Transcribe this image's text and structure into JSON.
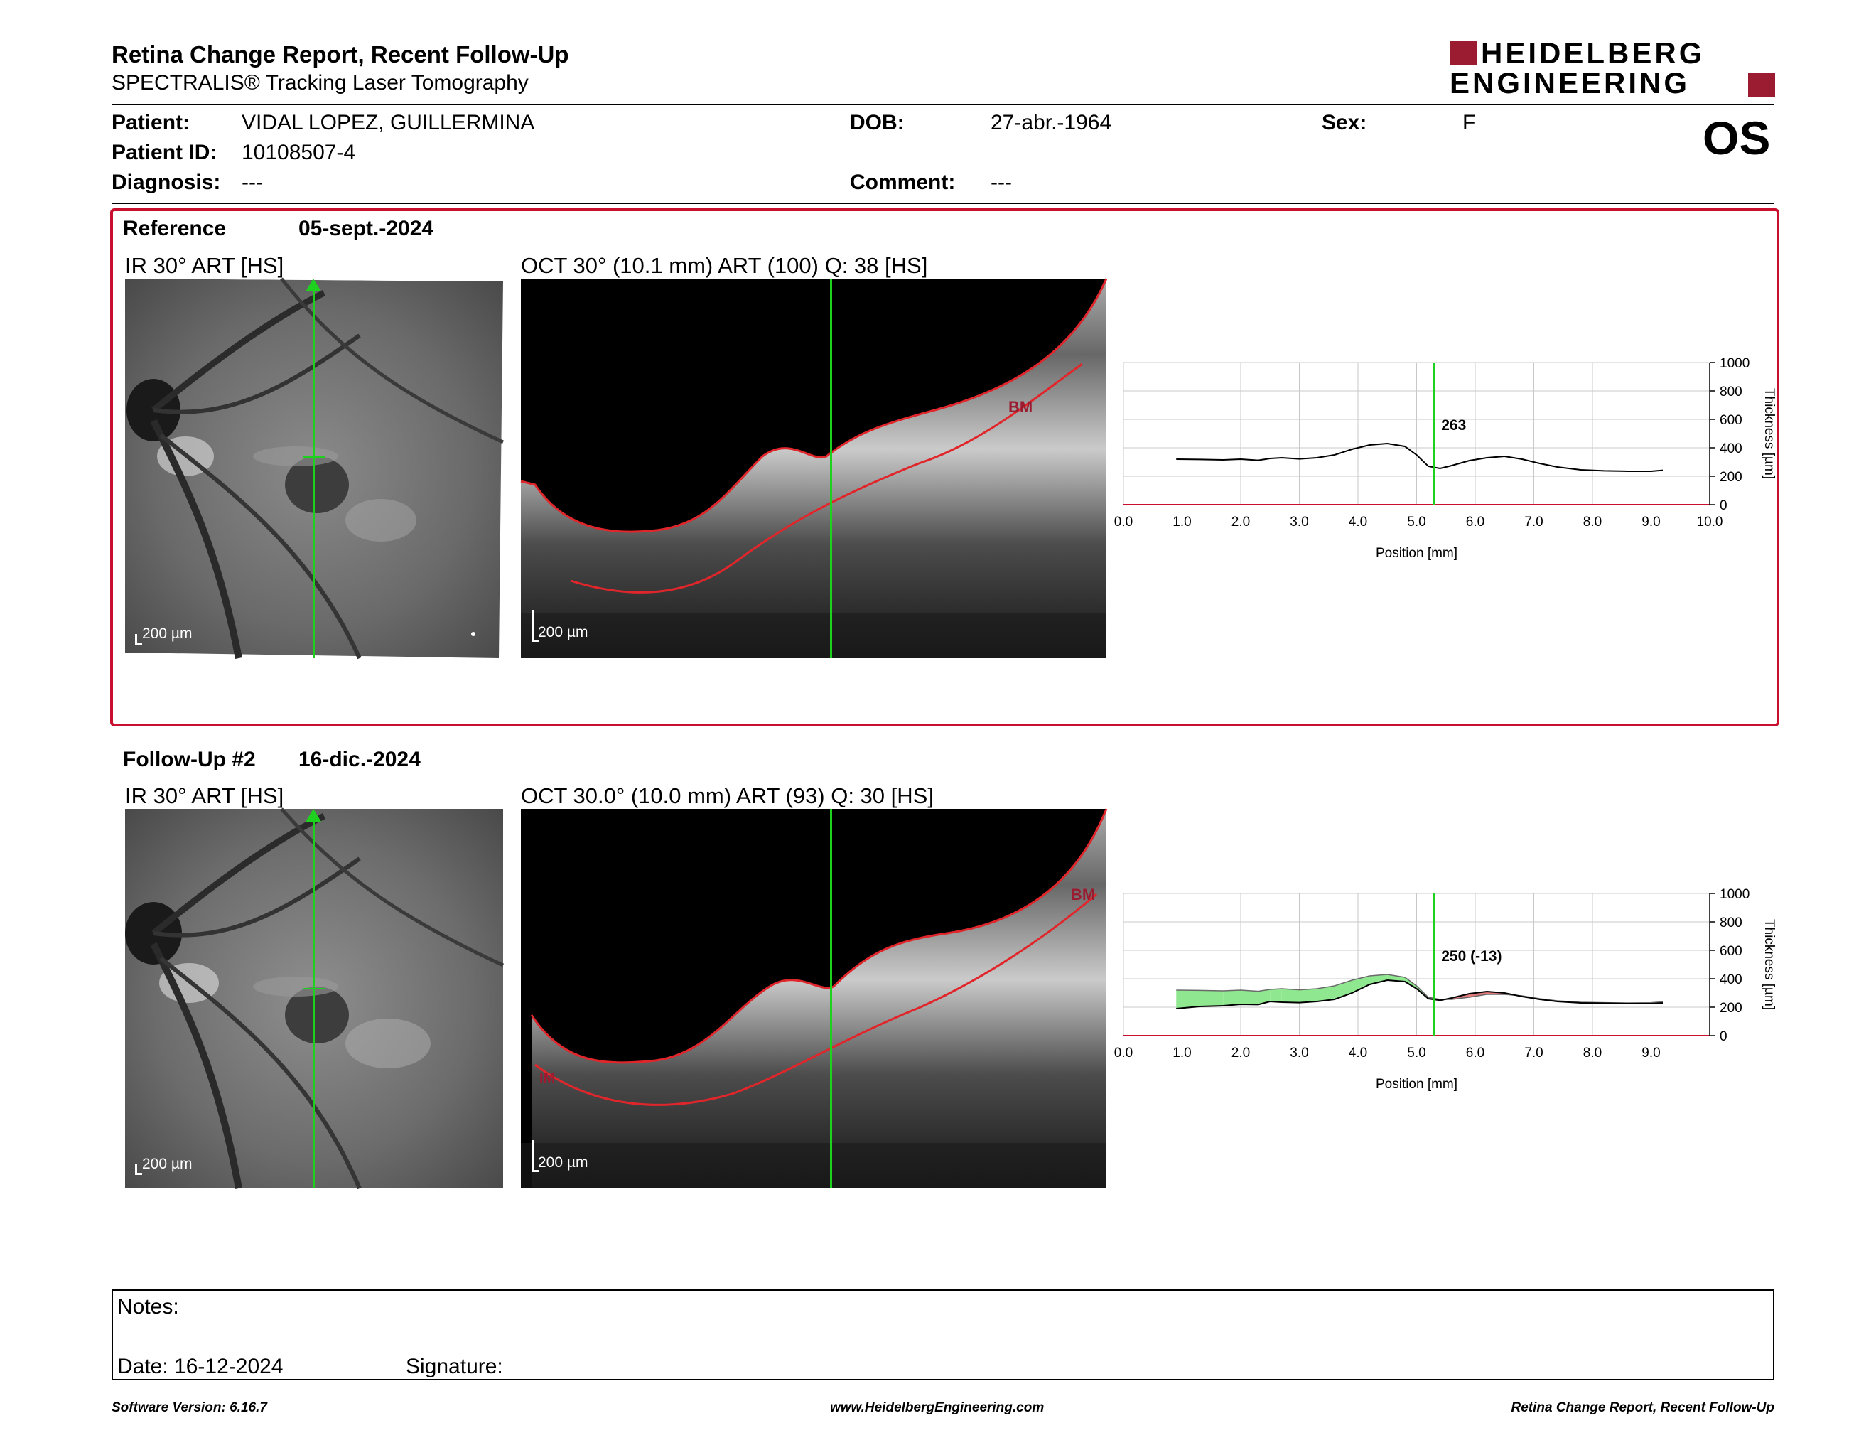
{
  "header": {
    "report_title": "Retina Change Report, Recent Follow-Up",
    "subtitle": "SPECTRALIS® Tracking Laser Tomography",
    "logo_line1": "HEIDELBERG",
    "logo_line2": "ENGINEERING",
    "eye": "OS"
  },
  "patient": {
    "patient_label": "Patient:",
    "patient_value": "VIDAL LOPEZ, GUILLERMINA",
    "id_label": "Patient ID:",
    "id_value": "10108507-4",
    "diagnosis_label": "Diagnosis:",
    "diagnosis_value": "---",
    "dob_label": "DOB:",
    "dob_value": "27-abr.-1964",
    "comment_label": "Comment:",
    "comment_value": "---",
    "sex_label": "Sex:",
    "sex_value": "F"
  },
  "reference": {
    "label": "Reference",
    "date": "05-sept.-2024",
    "ir_title": "IR 30° ART [HS]",
    "oct_title": "OCT 30° (10.1 mm) ART (100) Q: 38 [HS]",
    "ir_scale": "200 µm",
    "oct_scale": "200 µm",
    "bm_label": "BM"
  },
  "followup": {
    "label": "Follow-Up #2",
    "date": "16-dic.-2024",
    "ir_title": "IR 30° ART [HS]",
    "oct_title": "OCT 30.0° (10.0 mm) ART (93) Q: 30 [HS]",
    "ir_scale": "200 µm",
    "oct_scale": "200 µm",
    "bm_label": "BM",
    "ilm_label": "IM"
  },
  "colors": {
    "accent_red": "#c8102e",
    "logo_red": "#9b1b30",
    "cursor_green": "#1fd11f",
    "segmentation_red": "#e0262b",
    "increase_fill": "#8fe88f",
    "decrease_fill": "#e07a7a"
  },
  "chart_data": [
    {
      "type": "line",
      "xlabel": "Position [mm]",
      "ylabel": "Thickness [µm]",
      "xlim": [
        0,
        10
      ],
      "ylim": [
        0,
        1000
      ],
      "xticks": [
        "0.0",
        "1.0",
        "2.0",
        "3.0",
        "4.0",
        "5.0",
        "6.0",
        "7.0",
        "8.0",
        "9.0",
        "10.0"
      ],
      "yticks": [
        "0",
        "200",
        "400",
        "600",
        "800",
        "1000"
      ],
      "cursor_x": 5.3,
      "cursor_label": "263",
      "grid": true,
      "series": [
        {
          "x": [
            0.9,
            1.3,
            1.7,
            2.0,
            2.3,
            2.5,
            2.7,
            3.0,
            3.3,
            3.6,
            3.9,
            4.2,
            4.5,
            4.8,
            5.0,
            5.2,
            5.4,
            5.6,
            5.9,
            6.2,
            6.5,
            6.8,
            7.1,
            7.4,
            7.8,
            8.2,
            8.6,
            9.0,
            9.2
          ],
          "values": [
            320,
            318,
            315,
            320,
            312,
            325,
            330,
            322,
            330,
            350,
            390,
            420,
            430,
            410,
            350,
            270,
            255,
            275,
            310,
            330,
            340,
            320,
            290,
            265,
            245,
            238,
            235,
            235,
            242
          ]
        }
      ]
    },
    {
      "type": "area",
      "xlabel": "Position [mm]",
      "ylabel": "Thickness [µm]",
      "xlim": [
        0,
        10
      ],
      "ylim": [
        0,
        1000
      ],
      "xticks": [
        "0.0",
        "1.0",
        "2.0",
        "3.0",
        "4.0",
        "5.0",
        "6.0",
        "7.0",
        "8.0",
        "9.0"
      ],
      "yticks": [
        "0",
        "200",
        "400",
        "600",
        "800",
        "1000"
      ],
      "cursor_x": 5.3,
      "cursor_label": "250 (-13)",
      "grid": true,
      "series": [
        {
          "x": [
            0.9,
            1.3,
            1.7,
            2.0,
            2.3,
            2.5,
            2.7,
            3.0,
            3.3,
            3.6,
            3.9,
            4.2,
            4.5,
            4.8,
            5.0,
            5.2,
            5.4,
            5.6,
            5.9,
            6.2,
            6.5,
            6.8,
            7.1,
            7.4,
            7.8,
            8.2,
            8.6,
            9.0,
            9.2
          ],
          "values": [
            190,
            205,
            210,
            220,
            218,
            240,
            235,
            232,
            240,
            255,
            300,
            360,
            390,
            380,
            330,
            260,
            248,
            265,
            295,
            310,
            300,
            275,
            255,
            240,
            230,
            228,
            225,
            225,
            230
          ]
        },
        {
          "x": [
            0.9,
            1.3,
            1.7,
            2.0,
            2.3,
            2.5,
            2.7,
            3.0,
            3.3,
            3.6,
            3.9,
            4.2,
            4.5,
            4.8,
            5.0,
            5.2,
            5.4,
            5.6,
            5.9,
            6.2,
            6.5,
            6.8,
            7.1,
            7.4,
            7.8,
            8.2,
            8.6,
            9.0,
            9.2
          ],
          "values": [
            320,
            318,
            315,
            320,
            312,
            325,
            330,
            322,
            330,
            350,
            390,
            420,
            430,
            410,
            350,
            270,
            255,
            255,
            270,
            290,
            290,
            280,
            260,
            245,
            235,
            232,
            230,
            232,
            238
          ]
        }
      ]
    }
  ],
  "notes": {
    "notes_label": "Notes:",
    "date_text": "Date: 16-12-2024",
    "signature_label": "Signature:"
  },
  "footer": {
    "software": "Software Version: 6.16.7",
    "website": "www.HeidelbergEngineering.com",
    "report_name": "Retina Change Report, Recent Follow-Up"
  }
}
